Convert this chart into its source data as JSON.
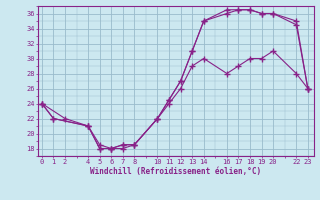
{
  "xlabel": "Windchill (Refroidissement éolien,°C)",
  "background_color": "#cce8f0",
  "line_color": "#882288",
  "grid_color": "#99bbcc",
  "x_ticks": [
    0,
    1,
    2,
    4,
    5,
    6,
    7,
    8,
    10,
    11,
    12,
    13,
    14,
    16,
    17,
    18,
    19,
    20,
    22,
    23
  ],
  "line1_x": [
    0,
    1,
    4,
    5,
    6,
    7,
    8,
    10,
    11,
    12,
    13,
    14,
    16,
    17,
    18,
    19,
    20,
    22,
    23
  ],
  "line1_y": [
    24,
    22,
    21,
    18,
    18,
    18.5,
    18.5,
    22,
    24,
    26,
    29,
    30,
    28,
    29,
    30,
    30,
    31,
    28,
    26
  ],
  "line2_x": [
    0,
    1,
    4,
    5,
    6,
    7,
    8,
    10,
    11,
    12,
    13,
    14,
    16,
    17,
    18,
    19,
    20,
    22,
    23
  ],
  "line2_y": [
    24,
    22,
    21,
    18,
    18,
    18,
    18.5,
    22,
    24.5,
    27,
    31,
    35,
    36,
    36.5,
    36.5,
    36,
    36,
    35,
    26
  ],
  "line3_x": [
    0,
    2,
    4,
    5,
    6,
    7,
    8,
    10,
    11,
    12,
    13,
    14,
    16,
    17,
    18,
    19,
    20,
    22,
    23
  ],
  "line3_y": [
    24,
    22,
    21,
    18.5,
    18,
    18.5,
    18.5,
    22,
    24.5,
    27,
    31,
    35,
    36.5,
    36.5,
    36.5,
    36,
    36,
    34.5,
    26
  ],
  "ylim": [
    17.5,
    37
  ],
  "xlim": [
    -0.3,
    23.5
  ],
  "yticks": [
    18,
    20,
    22,
    24,
    26,
    28,
    30,
    32,
    34,
    36
  ]
}
